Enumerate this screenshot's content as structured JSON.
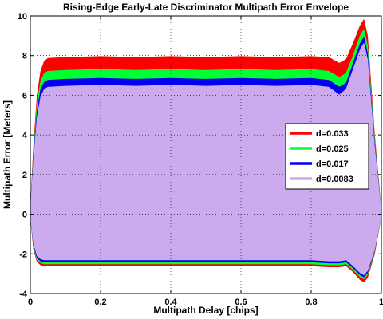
{
  "chart_data": {
    "type": "area",
    "title": "Rising-Edge Early-Late Discriminator Multipath Error Envelope",
    "xlabel": "Multipath Delay [chips]",
    "ylabel": "Multipath Error [Meters]",
    "xlim": [
      0,
      1
    ],
    "ylim": [
      -4,
      10
    ],
    "xticks": [
      "0",
      "0.2",
      "0.4",
      "0.6",
      "0.8",
      "1"
    ],
    "yticks": [
      "-4",
      "-2",
      "0",
      "2",
      "4",
      "6",
      "8",
      "10"
    ],
    "grid": true,
    "legend_position": "right",
    "x": [
      0,
      0.01,
      0.02,
      0.03,
      0.04,
      0.05,
      0.1,
      0.2,
      0.3,
      0.4,
      0.5,
      0.6,
      0.7,
      0.8,
      0.85,
      0.88,
      0.9,
      0.92,
      0.94,
      0.95,
      0.96,
      0.98,
      1.0
    ],
    "series": [
      {
        "name": "d=0.033",
        "color": "#ff0000",
        "upper": [
          0,
          3.5,
          6.0,
          7.2,
          7.7,
          7.85,
          7.9,
          7.95,
          7.9,
          7.95,
          7.9,
          7.95,
          7.9,
          7.95,
          7.9,
          7.6,
          7.8,
          8.6,
          9.5,
          9.8,
          9.0,
          4.0,
          0
        ],
        "lower": [
          0,
          -1.8,
          -2.4,
          -2.55,
          -2.6,
          -2.6,
          -2.6,
          -2.6,
          -2.6,
          -2.6,
          -2.6,
          -2.6,
          -2.6,
          -2.6,
          -2.65,
          -2.65,
          -2.6,
          -2.9,
          -3.3,
          -3.4,
          -3.2,
          -2.0,
          0
        ]
      },
      {
        "name": "d=0.025",
        "color": "#00ff33",
        "upper": [
          0,
          3.2,
          5.6,
          6.7,
          7.1,
          7.2,
          7.25,
          7.3,
          7.25,
          7.3,
          7.25,
          7.3,
          7.25,
          7.3,
          7.2,
          6.9,
          7.1,
          8.0,
          9.0,
          9.3,
          8.5,
          3.8,
          0
        ],
        "lower": [
          0,
          -1.7,
          -2.3,
          -2.45,
          -2.5,
          -2.5,
          -2.5,
          -2.5,
          -2.5,
          -2.5,
          -2.5,
          -2.5,
          -2.5,
          -2.5,
          -2.55,
          -2.55,
          -2.5,
          -2.8,
          -3.15,
          -3.25,
          -3.05,
          -1.9,
          0
        ]
      },
      {
        "name": "d=0.017",
        "color": "#0000ee",
        "upper": [
          0,
          3.0,
          5.2,
          6.3,
          6.65,
          6.75,
          6.8,
          6.85,
          6.8,
          6.85,
          6.8,
          6.85,
          6.8,
          6.85,
          6.75,
          6.4,
          6.6,
          7.6,
          8.6,
          8.9,
          8.1,
          3.6,
          0
        ],
        "lower": [
          0,
          -1.6,
          -2.2,
          -2.35,
          -2.4,
          -2.4,
          -2.4,
          -2.4,
          -2.4,
          -2.4,
          -2.4,
          -2.4,
          -2.4,
          -2.4,
          -2.45,
          -2.45,
          -2.4,
          -2.7,
          -3.05,
          -3.15,
          -2.95,
          -1.85,
          0
        ]
      },
      {
        "name": "d=0.0083",
        "color": "#ccaaee",
        "upper": [
          0,
          2.8,
          4.9,
          5.9,
          6.3,
          6.4,
          6.45,
          6.5,
          6.45,
          6.5,
          6.45,
          6.5,
          6.45,
          6.5,
          6.4,
          6.0,
          6.3,
          7.3,
          8.3,
          8.6,
          7.8,
          3.4,
          0
        ],
        "lower": [
          0,
          -1.5,
          -2.1,
          -2.25,
          -2.3,
          -2.3,
          -2.3,
          -2.3,
          -2.3,
          -2.3,
          -2.3,
          -2.3,
          -2.3,
          -2.3,
          -2.35,
          -2.35,
          -2.3,
          -2.6,
          -2.95,
          -3.05,
          -2.85,
          -1.8,
          0
        ]
      }
    ]
  }
}
